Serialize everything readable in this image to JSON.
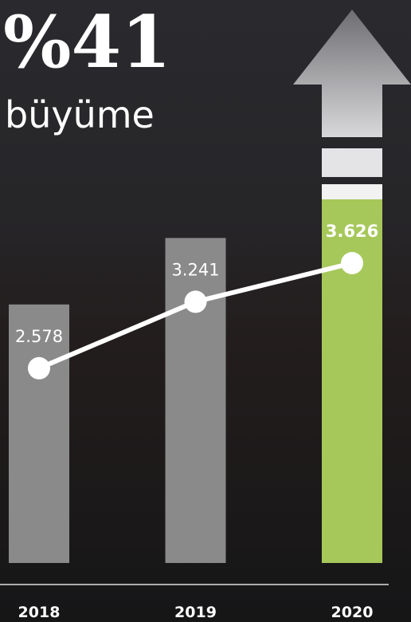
{
  "chart_data": {
    "type": "bar-line",
    "title": "%41",
    "subtitle": "büyüme",
    "categories": [
      "2018",
      "2019",
      "2020"
    ],
    "values": [
      2578,
      3241,
      3626
    ],
    "value_labels": [
      "2.578",
      "3.241",
      "3.626"
    ],
    "colors": [
      "#8a8a8a",
      "#8a8a8a",
      "#a6c85a"
    ],
    "line_color": "#ffffff"
  }
}
